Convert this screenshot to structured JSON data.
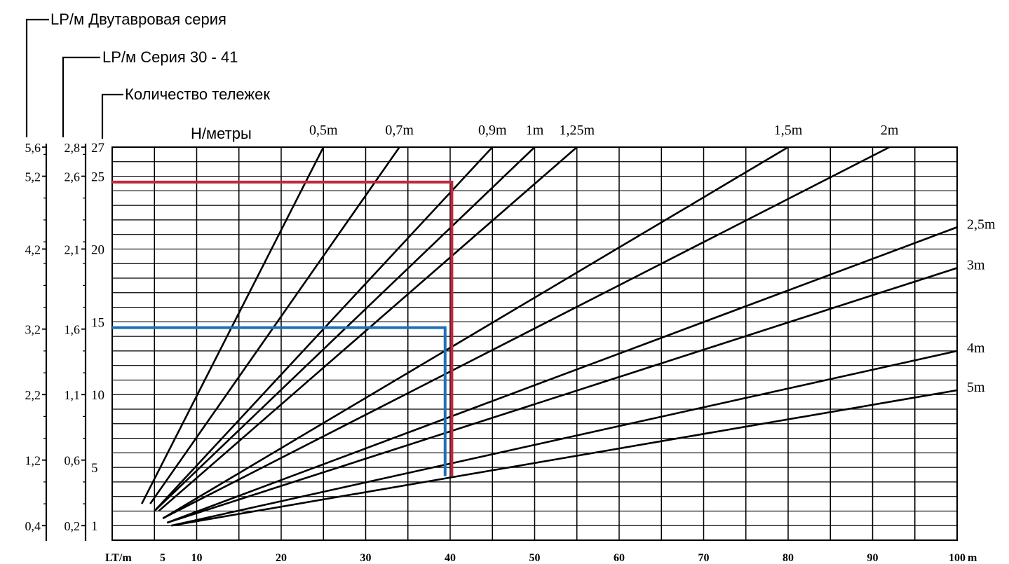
{
  "header": {
    "label_i_beam": "LP/м Двутавровая серия",
    "label_series": "LP/м Серия 30 - 41",
    "label_trolleys": "Количество тележек"
  },
  "chart_data": {
    "type": "line",
    "curves_title": "Н/метры",
    "xlabel": "LT/m",
    "x_unit": "m",
    "xlim": [
      0,
      100
    ],
    "ylim": [
      0,
      27
    ],
    "grid": true,
    "x_ticks": [
      {
        "value": 5,
        "label": "5"
      },
      {
        "value": 10,
        "label": "10"
      },
      {
        "value": 20,
        "label": "20"
      },
      {
        "value": 30,
        "label": "30"
      },
      {
        "value": 40,
        "label": "40"
      },
      {
        "value": 50,
        "label": "50"
      },
      {
        "value": 60,
        "label": "60"
      },
      {
        "value": 70,
        "label": "70"
      },
      {
        "value": 80,
        "label": "80"
      },
      {
        "value": 90,
        "label": "90"
      },
      {
        "value": 100,
        "label": "100"
      }
    ],
    "y_axis_trolleys": [
      {
        "value": 1,
        "label": "1"
      },
      {
        "value": 5,
        "label": "5"
      },
      {
        "value": 10,
        "label": "10"
      },
      {
        "value": 15,
        "label": "15"
      },
      {
        "value": 20,
        "label": "20"
      },
      {
        "value": 25,
        "label": "25"
      },
      {
        "value": 27,
        "label": "27"
      }
    ],
    "y_axis_series": [
      {
        "value": 1,
        "label": "0,2"
      },
      {
        "value": 5.5,
        "label": "0,6"
      },
      {
        "value": 10,
        "label": "1,1"
      },
      {
        "value": 14.5,
        "label": "1,6"
      },
      {
        "value": 20,
        "label": "2,1"
      },
      {
        "value": 25,
        "label": "2,6"
      },
      {
        "value": 27,
        "label": "2,8"
      }
    ],
    "y_axis_ibeam": [
      {
        "value": 1,
        "label": "0,4"
      },
      {
        "value": 5.5,
        "label": "1,2"
      },
      {
        "value": 10,
        "label": "2,2"
      },
      {
        "value": 14.5,
        "label": "3,2"
      },
      {
        "value": 20,
        "label": "4,2"
      },
      {
        "value": 25,
        "label": "5,2"
      },
      {
        "value": 27,
        "label": "5,6"
      }
    ],
    "series": [
      {
        "name": "0,5m",
        "points": [
          [
            3.5,
            2.5
          ],
          [
            25,
            27
          ]
        ]
      },
      {
        "name": "0,7m",
        "points": [
          [
            4.5,
            2.5
          ],
          [
            34,
            27
          ]
        ]
      },
      {
        "name": "0,9m",
        "points": [
          [
            5,
            2
          ],
          [
            45,
            27
          ]
        ]
      },
      {
        "name": "1m",
        "points": [
          [
            5,
            2
          ],
          [
            50,
            27
          ]
        ]
      },
      {
        "name": "1,25m",
        "points": [
          [
            5.5,
            2
          ],
          [
            55,
            27
          ]
        ]
      },
      {
        "name": "1,5m",
        "points": [
          [
            6,
            1.5
          ],
          [
            80,
            27
          ]
        ]
      },
      {
        "name": "2m",
        "points": [
          [
            6,
            1.5
          ],
          [
            92,
            27
          ]
        ]
      },
      {
        "name": "2,5m",
        "points": [
          [
            6.5,
            1.2
          ],
          [
            100,
            21.5
          ]
        ]
      },
      {
        "name": "3m",
        "points": [
          [
            6.5,
            1.2
          ],
          [
            100,
            18.7
          ]
        ]
      },
      {
        "name": "4m",
        "points": [
          [
            7,
            1
          ],
          [
            100,
            13
          ]
        ]
      },
      {
        "name": "5m",
        "points": [
          [
            7,
            1
          ],
          [
            100,
            10.3
          ]
        ]
      }
    ],
    "annotations": [
      {
        "color": "#c0283c",
        "points": [
          [
            0,
            24.6
          ],
          [
            40.2,
            24.6
          ],
          [
            40.2,
            4.4
          ]
        ]
      },
      {
        "color": "#1f6fb8",
        "points": [
          [
            0,
            14.6
          ],
          [
            39.4,
            14.6
          ],
          [
            39.4,
            4.4
          ]
        ]
      }
    ]
  }
}
